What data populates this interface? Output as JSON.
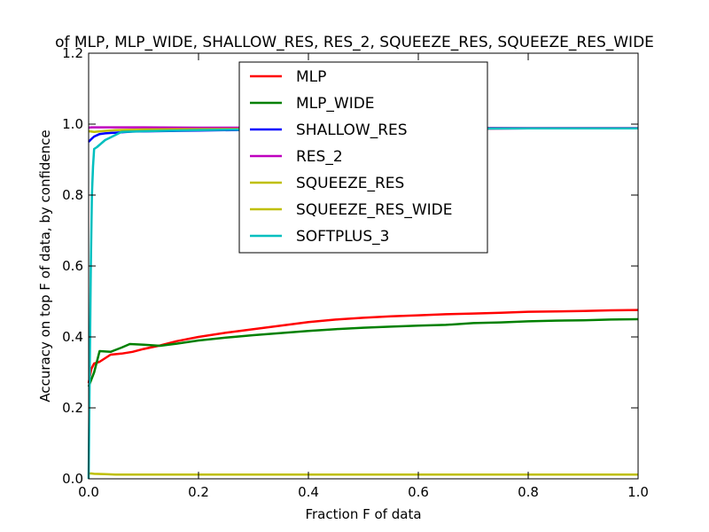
{
  "chart_data": {
    "type": "line",
    "title": "of MLP, MLP_WIDE, SHALLOW_RES, RES_2, SQUEEZE_RES, SQUEEZE_RES_WIDE",
    "xlabel": "Fraction F of data",
    "ylabel": "Accuracy on top F of data, by confidence",
    "xlim": [
      0.0,
      1.0
    ],
    "ylim": [
      0.0,
      1.2
    ],
    "xticks": [
      {
        "value": 0.0,
        "label": "0.0"
      },
      {
        "value": 0.2,
        "label": "0.2"
      },
      {
        "value": 0.4,
        "label": "0.4"
      },
      {
        "value": 0.6,
        "label": "0.6"
      },
      {
        "value": 0.8,
        "label": "0.8"
      },
      {
        "value": 1.0,
        "label": "1.0"
      }
    ],
    "yticks": [
      {
        "value": 0.0,
        "label": "0.0"
      },
      {
        "value": 0.2,
        "label": "0.2"
      },
      {
        "value": 0.4,
        "label": "0.4"
      },
      {
        "value": 0.6,
        "label": "0.6"
      },
      {
        "value": 0.8,
        "label": "0.8"
      },
      {
        "value": 1.0,
        "label": "1.0"
      },
      {
        "value": 1.2,
        "label": "1.2"
      }
    ],
    "grid": false,
    "legend_position": "top-center",
    "series": [
      {
        "name": "MLP",
        "color": "#ff0000",
        "x": [
          0.0,
          0.005,
          0.01,
          0.02,
          0.04,
          0.06,
          0.08,
          0.1,
          0.13,
          0.16,
          0.2,
          0.25,
          0.3,
          0.35,
          0.4,
          0.45,
          0.5,
          0.55,
          0.6,
          0.65,
          0.7,
          0.75,
          0.8,
          0.85,
          0.9,
          0.95,
          1.0
        ],
        "y": [
          0.27,
          0.31,
          0.325,
          0.33,
          0.35,
          0.353,
          0.358,
          0.366,
          0.376,
          0.388,
          0.4,
          0.412,
          0.422,
          0.432,
          0.442,
          0.449,
          0.454,
          0.458,
          0.461,
          0.464,
          0.466,
          0.468,
          0.471,
          0.472,
          0.473,
          0.475,
          0.476
        ]
      },
      {
        "name": "MLP_WIDE",
        "color": "#008000",
        "x": [
          0.0,
          0.005,
          0.01,
          0.02,
          0.04,
          0.06,
          0.075,
          0.1,
          0.13,
          0.16,
          0.2,
          0.25,
          0.3,
          0.35,
          0.4,
          0.45,
          0.5,
          0.55,
          0.6,
          0.65,
          0.7,
          0.75,
          0.8,
          0.85,
          0.9,
          0.95,
          1.0
        ],
        "y": [
          0.26,
          0.28,
          0.3,
          0.36,
          0.358,
          0.37,
          0.38,
          0.378,
          0.375,
          0.381,
          0.39,
          0.398,
          0.405,
          0.411,
          0.417,
          0.422,
          0.426,
          0.429,
          0.432,
          0.434,
          0.439,
          0.441,
          0.444,
          0.446,
          0.447,
          0.449,
          0.45
        ]
      },
      {
        "name": "SHALLOW_RES",
        "color": "#0000ff",
        "x": [
          0.0,
          0.005,
          0.01,
          0.02,
          0.03,
          0.05,
          0.08,
          0.12,
          0.2,
          0.3,
          0.4,
          0.5,
          0.6,
          0.7,
          0.8,
          0.9,
          1.0
        ],
        "y": [
          0.95,
          0.958,
          0.965,
          0.972,
          0.974,
          0.976,
          0.979,
          0.98,
          0.982,
          0.984,
          0.985,
          0.986,
          0.987,
          0.987,
          0.988,
          0.988,
          0.988
        ]
      },
      {
        "name": "RES_2",
        "color": "#bf00bf",
        "x": [
          0.0,
          0.005,
          0.02,
          0.05,
          0.1,
          0.2,
          0.4,
          0.6,
          0.8,
          1.0
        ],
        "y": [
          0.99,
          0.991,
          0.991,
          0.991,
          0.991,
          0.99,
          0.99,
          0.99,
          0.989,
          0.989
        ]
      },
      {
        "name": "SQUEEZE_RES",
        "color": "#bfbf00",
        "x": [
          0.0,
          0.005,
          0.01,
          0.03,
          0.05,
          0.1,
          0.2,
          0.4,
          0.6,
          0.8,
          1.0
        ],
        "y": [
          0.015,
          0.015,
          0.014,
          0.013,
          0.012,
          0.012,
          0.012,
          0.012,
          0.012,
          0.012,
          0.012
        ]
      },
      {
        "name": "SQUEEZE_RES_WIDE",
        "color": "#bfbf00",
        "x": [
          0.0,
          0.005,
          0.01,
          0.03,
          0.05,
          0.1,
          0.2,
          0.4,
          0.6,
          0.8,
          1.0
        ],
        "y": [
          0.98,
          0.979,
          0.978,
          0.981,
          0.983,
          0.985,
          0.986,
          0.987,
          0.987,
          0.988,
          0.988
        ]
      },
      {
        "name": "SOFTPLUS_3",
        "color": "#00bfbf",
        "x": [
          0.0,
          0.002,
          0.004,
          0.006,
          0.008,
          0.01,
          0.015,
          0.03,
          0.06,
          0.1,
          0.2,
          0.3,
          0.4,
          0.5,
          0.6,
          0.7,
          0.8,
          0.9,
          1.0
        ],
        "y": [
          0.0,
          0.3,
          0.6,
          0.8,
          0.88,
          0.93,
          0.935,
          0.955,
          0.978,
          0.98,
          0.983,
          0.985,
          0.986,
          0.987,
          0.988,
          0.988,
          0.988,
          0.988,
          0.988
        ]
      }
    ]
  }
}
